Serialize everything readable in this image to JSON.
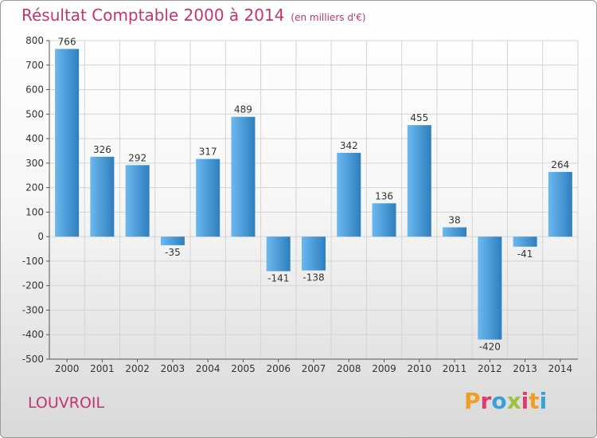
{
  "header": {
    "title": "Résultat Comptable 2000 à 2014",
    "subtitle": "(en milliers d'€)"
  },
  "footer": {
    "commune": "LOUVROIL",
    "logo_text": "Proxiti"
  },
  "colors": {
    "title": "#c4346f",
    "bar_light": "#5aacea",
    "bar_dark": "#2a78b8",
    "gridline": "#d4d4d4",
    "logo_letters": [
      "#f0a020",
      "#e03c6a",
      "#3aa0d8",
      "#9ac23a",
      "#e03c6a",
      "#f0a020",
      "#3aa0d8"
    ]
  },
  "chart_data": {
    "type": "bar",
    "title": "Résultat Comptable 2000 à 2014",
    "categories": [
      "2000",
      "2001",
      "2002",
      "2003",
      "2004",
      "2005",
      "2006",
      "2007",
      "2008",
      "2009",
      "2010",
      "2011",
      "2012",
      "2013",
      "2014"
    ],
    "values": [
      766,
      326,
      292,
      -35,
      317,
      489,
      -141,
      -138,
      342,
      136,
      455,
      38,
      -420,
      -41,
      264
    ],
    "ylim": [
      -500,
      800
    ],
    "yticks": [
      800,
      700,
      600,
      500,
      400,
      300,
      200,
      100,
      0,
      -100,
      -200,
      -300,
      -400,
      -500
    ],
    "grid": true,
    "legend": "none"
  }
}
